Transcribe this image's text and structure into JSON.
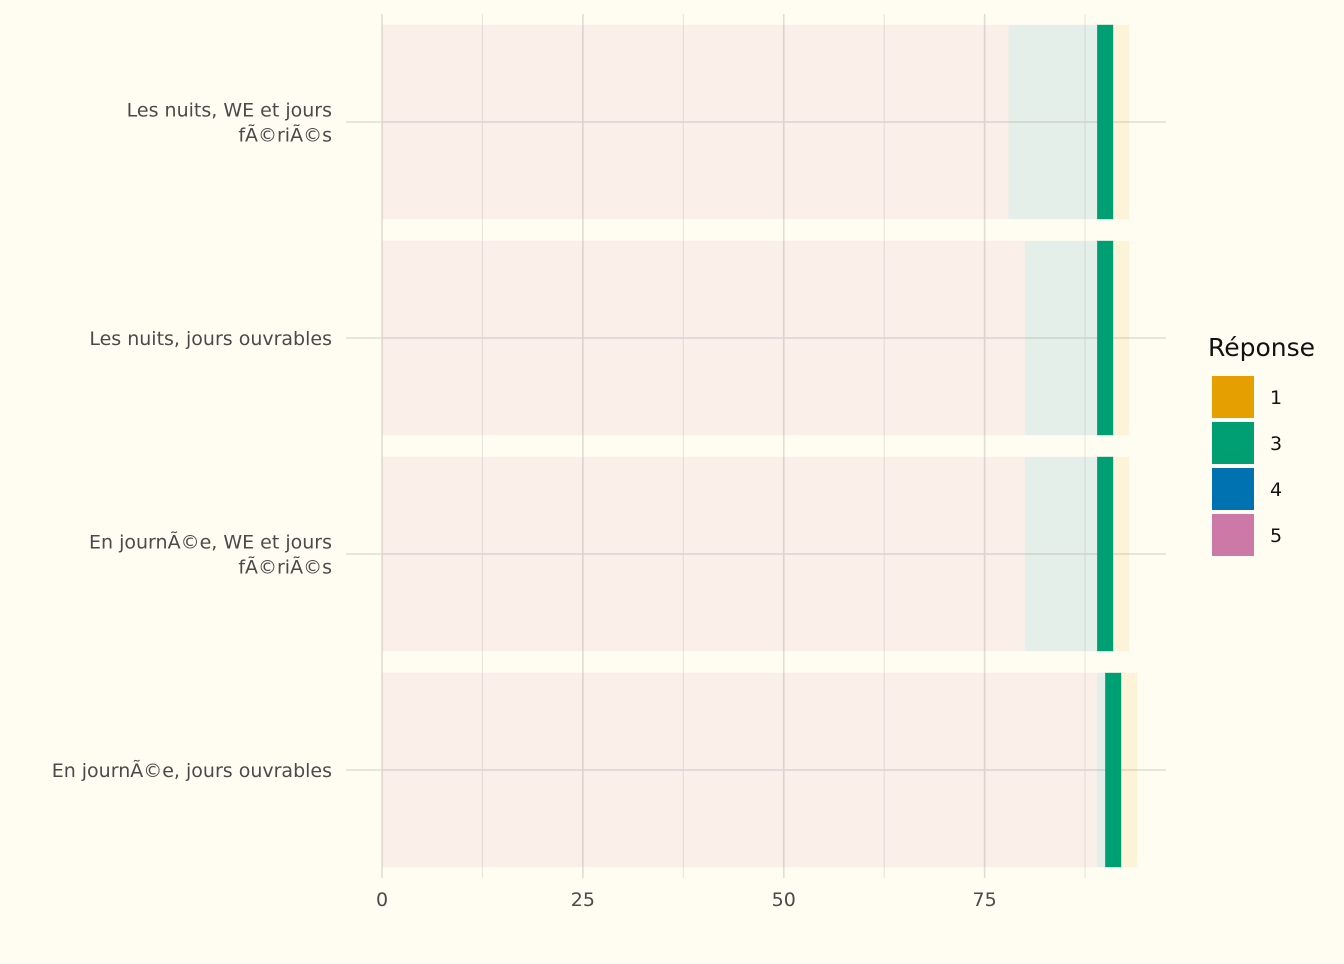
{
  "chart_data": {
    "type": "bar",
    "orientation": "horizontal",
    "stacked": true,
    "categories": [
      "Les nuits, WE et jours\nfÃ©riÃ©s",
      "Les nuits, jours ouvrables",
      "En journÃ©e, WE et jours\nfÃ©riÃ©s",
      "En journÃ©e, jours ouvrables"
    ],
    "series": [
      {
        "name": "5",
        "values": [
          78,
          80,
          80,
          89
        ]
      },
      {
        "name": "4",
        "values": [
          11,
          9,
          9,
          1
        ]
      },
      {
        "name": "3",
        "values": [
          2,
          2,
          2,
          2
        ]
      },
      {
        "name": "1",
        "values": [
          2,
          2,
          2,
          2
        ]
      }
    ],
    "xlim": [
      0,
      97.5
    ],
    "xticks": [
      0,
      25,
      50,
      75
    ],
    "xlabel": "",
    "ylabel": "",
    "grid": true,
    "legend": {
      "title": "Réponse",
      "position": "right",
      "entries": [
        "1",
        "3",
        "4",
        "5"
      ]
    },
    "colors": {
      "1": "#E69F00",
      "3": "#009E73",
      "4": "#0072B2",
      "5": "#CC79A7"
    },
    "bar_alpha": {
      "1": 0.1,
      "3": 1.0,
      "4": 0.1,
      "5": 0.1
    },
    "background": "#fffdf1"
  }
}
